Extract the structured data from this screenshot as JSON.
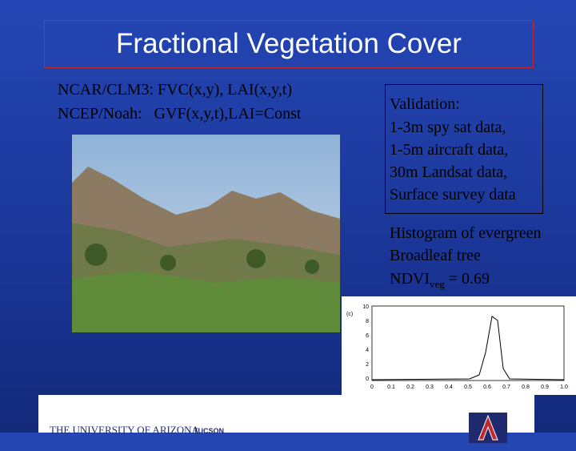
{
  "slide": {
    "title": "Fractional Vegetation Cover",
    "models": [
      "NCAR/CLM3: FVC(x,y), LAI(x,y,t)",
      "NCEP/Noah:   GVF(x,y,t),LAI=Const"
    ],
    "validation": {
      "heading": "Validation:",
      "items": [
        "1-3m spy sat data,",
        "1-5m aircraft data,",
        "30m Landsat data,",
        "Surface survey data"
      ]
    },
    "histogram": {
      "lines": [
        "Histogram of evergreen",
        "Broadleaf tree"
      ],
      "ndvi": {
        "base": "NDVI",
        "sub": "veg",
        "rest": " = 0.69"
      }
    },
    "figure": {
      "panel": "(c)",
      "yticks": [
        "10",
        "8",
        "6",
        "4",
        "2",
        "0"
      ],
      "xticks": [
        "0",
        "0.1",
        "0.2",
        "0.3",
        "0.4",
        "0.5",
        "0.6",
        "0.7",
        "0.8",
        "0.9",
        "1.0"
      ]
    },
    "footer": {
      "university": "THE UNIVERSITY OF ARIZONA",
      "city": "TUCSON"
    }
  }
}
